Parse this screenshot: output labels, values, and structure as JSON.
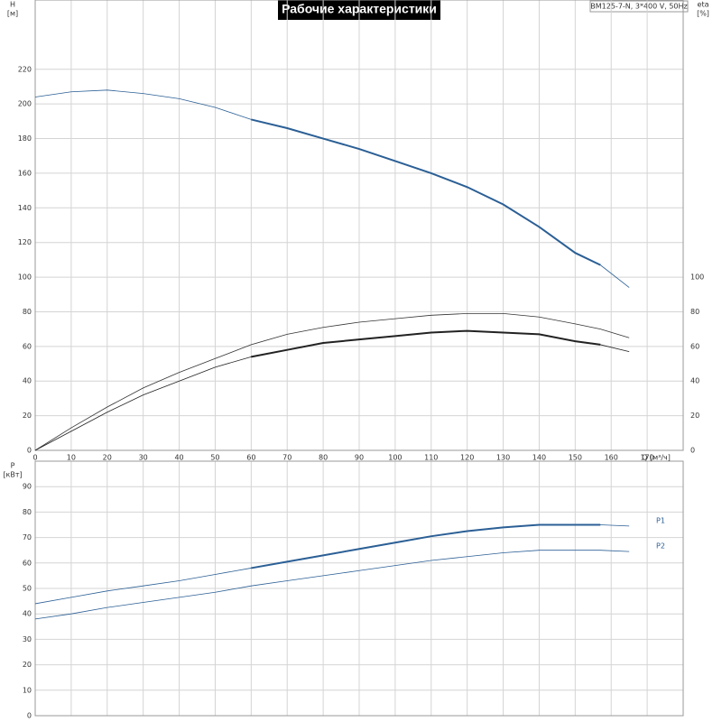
{
  "title": "Рабочие характеристики",
  "model": "BM125-7-N, 3*400 V, 50Hz",
  "chart_data": [
    {
      "type": "line",
      "x_label": "Q [м³/ч]",
      "y_label": [
        "H",
        "[м]"
      ],
      "y2_label": [
        "eta",
        "[%]"
      ],
      "x": [
        0,
        10,
        20,
        30,
        40,
        50,
        60,
        70,
        80,
        90,
        100,
        110,
        120,
        130,
        140,
        150,
        157,
        165
      ],
      "xlim": [
        0,
        180
      ],
      "xticks": [
        0,
        10,
        20,
        30,
        40,
        50,
        60,
        70,
        80,
        90,
        100,
        110,
        120,
        130,
        140,
        150,
        160,
        170
      ],
      "ylim": [
        0,
        260
      ],
      "yticks": [
        0,
        20,
        40,
        60,
        80,
        100,
        120,
        140,
        160,
        180,
        200,
        220
      ],
      "y2lim": [
        0,
        260
      ],
      "y2ticks": [
        0,
        20,
        40,
        60,
        80,
        100
      ],
      "grid": true,
      "bold_range": [
        60,
        157
      ],
      "series": [
        {
          "name": "H",
          "color": "#2b5f95",
          "bold": true,
          "values": [
            204,
            207,
            208,
            206,
            203,
            198,
            191,
            186,
            180,
            174,
            167,
            160,
            152,
            142,
            129,
            114,
            107,
            94
          ]
        },
        {
          "name": "eta1",
          "color": "#333333",
          "bold": false,
          "axis": "y2",
          "values": [
            0,
            13,
            25,
            36,
            45,
            53,
            61,
            67,
            71,
            74,
            76,
            78,
            79,
            79,
            77,
            73,
            70,
            65
          ]
        },
        {
          "name": "eta2",
          "color": "#222222",
          "bold": true,
          "axis": "y2",
          "values": [
            0,
            11,
            22,
            32,
            40,
            48,
            54,
            58,
            62,
            64,
            66,
            68,
            69,
            68,
            67,
            63,
            61,
            57
          ]
        }
      ]
    },
    {
      "type": "line",
      "y_label": [
        "P",
        "[кВт]"
      ],
      "x": [
        0,
        10,
        20,
        30,
        40,
        50,
        60,
        70,
        80,
        90,
        100,
        110,
        120,
        130,
        140,
        150,
        157,
        165
      ],
      "xlim": [
        0,
        180
      ],
      "xticks": [
        0,
        10,
        20,
        30,
        40,
        50,
        60,
        70,
        80,
        90,
        100,
        110,
        120,
        130,
        140,
        150,
        160,
        170
      ],
      "ylim": [
        0,
        100
      ],
      "yticks": [
        0,
        10,
        20,
        30,
        40,
        50,
        60,
        70,
        80,
        90
      ],
      "grid": true,
      "bold_range": [
        60,
        157
      ],
      "series": [
        {
          "name": "P1",
          "color": "#2b5f95",
          "bold": true,
          "values": [
            44,
            46.5,
            49,
            51,
            53,
            55.5,
            58,
            60.5,
            63,
            65.5,
            68,
            70.5,
            72.5,
            74,
            75,
            75,
            75,
            74.5
          ]
        },
        {
          "name": "P2",
          "color": "#2b5f95",
          "bold": false,
          "values": [
            38,
            40,
            42.5,
            44.5,
            46.5,
            48.5,
            51,
            53,
            55,
            57,
            59,
            61,
            62.5,
            64,
            65,
            65,
            65,
            64.5
          ]
        }
      ]
    }
  ]
}
